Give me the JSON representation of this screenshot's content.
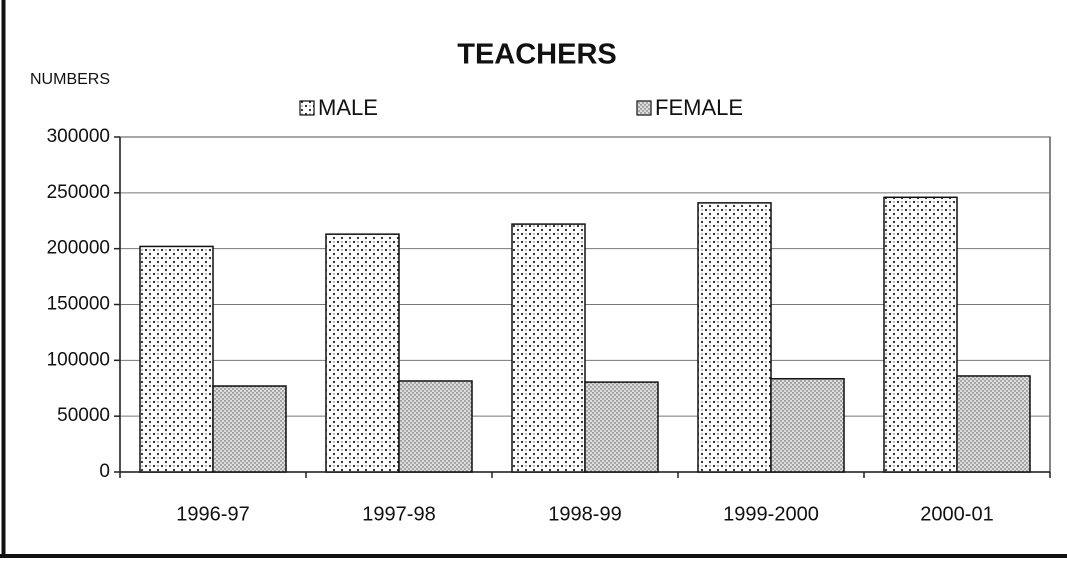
{
  "chart_data": {
    "type": "bar",
    "title": "TEACHERS",
    "y_label": "NUMBERS",
    "categories": [
      "1996-97",
      "1997-98",
      "1998-99",
      "1999-2000",
      "2000-01"
    ],
    "series": [
      {
        "name": "MALE",
        "color": "#222222",
        "values": [
          202000,
          213000,
          222000,
          241000,
          246000
        ]
      },
      {
        "name": "FEMALE",
        "color": "#555555",
        "values": [
          77000,
          81500,
          80500,
          83500,
          86000
        ]
      }
    ],
    "ylim": [
      0,
      300000
    ],
    "yticks": [
      0,
      50000,
      100000,
      150000,
      200000,
      250000,
      300000
    ],
    "grid": true,
    "legend": "top"
  }
}
